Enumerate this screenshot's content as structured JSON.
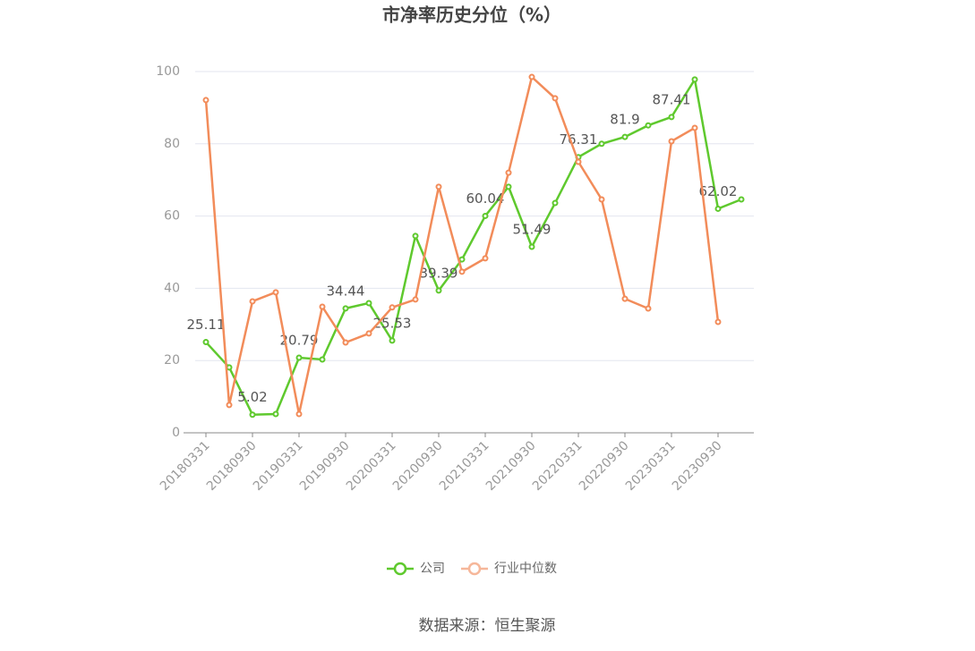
{
  "chart_data": {
    "type": "line",
    "title": "市净率历史分位（%）",
    "source": "数据来源：恒生聚源",
    "categories": [
      "20180331",
      null,
      "20180930",
      null,
      "20190331",
      null,
      "20190930",
      null,
      "20200331",
      null,
      "20200930",
      null,
      "20210331",
      null,
      "20210930",
      null,
      "20220331",
      null,
      "20220930",
      null,
      "20230331",
      null,
      "20230930",
      null
    ],
    "series": [
      {
        "name": "公司",
        "color": "#5fc92e",
        "label_every": 2,
        "values": [
          25.11,
          18.1,
          5.02,
          5.2,
          20.79,
          20.3,
          34.44,
          35.9,
          25.53,
          54.5,
          39.39,
          48.0,
          60.04,
          68.1,
          51.49,
          63.6,
          76.31,
          80.0,
          81.9,
          85.1,
          87.41,
          97.8,
          62.02,
          64.6
        ]
      },
      {
        "name": "行业中位数",
        "color": "#f28c5a",
        "values": [
          92.1,
          7.7,
          36.4,
          38.9,
          5.2,
          34.9,
          25.0,
          27.5,
          34.7,
          36.9,
          68.1,
          44.6,
          48.3,
          72.0,
          98.5,
          92.6,
          75.0,
          64.6,
          37.1,
          34.4,
          80.7,
          84.4,
          30.7,
          null
        ]
      }
    ],
    "ylim": [
      0,
      100
    ],
    "yticks": [
      0,
      20,
      40,
      60,
      80,
      100
    ],
    "grid": true,
    "legend": "bottom"
  }
}
